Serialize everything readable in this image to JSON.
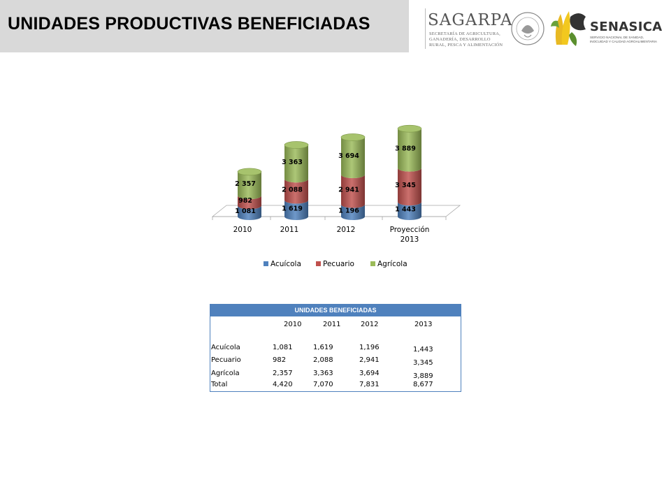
{
  "page": {
    "title": "UNIDADES PRODUCTIVAS BENEFICIADAS"
  },
  "logos": {
    "sagarpa_name": "SAGARPA",
    "sagarpa_sub": "SECRETARÍA DE AGRICULTURA, GANADERÍA, DESARROLLO RURAL, PESCA Y ALIMENTACIÓN",
    "seal_text": "ESTADOS UNIDOS MEXICANOS",
    "senasica_name": "SENASICA",
    "senasica_sub": "SERVICIO NACIONAL DE SANIDAD, INOCUIDAD Y CALIDAD AGROALIMENTARIA"
  },
  "chart_data": {
    "type": "bar",
    "stacked": true,
    "style": "3d-cylinder",
    "categories": [
      "2010",
      "2011",
      "2012",
      "Proyección 2013"
    ],
    "series": [
      {
        "name": "Acuícola",
        "color": "#4f81bd",
        "values": [
          1081,
          1619,
          1196,
          1443
        ],
        "labels": [
          "1 081",
          "1 619",
          "1 196",
          "1 443"
        ]
      },
      {
        "name": "Pecuario",
        "color": "#c0504d",
        "values": [
          982,
          2088,
          2941,
          3345
        ],
        "labels": [
          "982",
          "2 088",
          "2 941",
          "3 345"
        ]
      },
      {
        "name": "Agrícola",
        "color": "#9bbb59",
        "values": [
          2357,
          3363,
          3694,
          3889
        ],
        "labels": [
          "2 357",
          "3 363",
          "3 694",
          "3 889"
        ]
      }
    ],
    "ylim": [
      0,
      9000
    ],
    "grid": false,
    "legend_position": "bottom"
  },
  "table": {
    "title": "UNIDADES BENEFICIADAS",
    "columns": [
      "",
      "2010",
      "2011",
      "2012",
      "2013"
    ],
    "rows": [
      {
        "label": "Acuícola",
        "values": [
          "1,081",
          "1,619",
          "1,196",
          "1,443"
        ]
      },
      {
        "label": "Pecuario",
        "values": [
          "982",
          "2,088",
          "2,941",
          "3,345"
        ]
      },
      {
        "label": "Agrícola",
        "values": [
          "2,357",
          "3,363",
          "3,694",
          "3,889"
        ]
      },
      {
        "label": "Total",
        "values": [
          "4,420",
          "7,070",
          "7,831",
          "8,677"
        ]
      }
    ]
  }
}
